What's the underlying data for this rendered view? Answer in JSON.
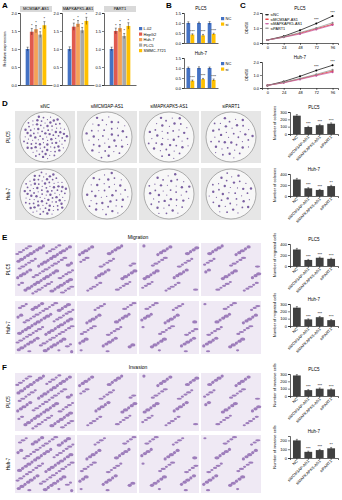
{
  "panel_labels": [
    "A",
    "B",
    "C",
    "D",
    "E",
    "F"
  ],
  "image_panels": [
    {
      "columns": [
        "siNC",
        "siMCM3AP-AS1",
        "siMAPKAPK5-AS1",
        "siPART1"
      ],
      "rows": [
        "PLC5",
        "Huh-7"
      ]
    },
    {
      "title": "Migration",
      "rows": [
        "PLC5",
        "Huh-7"
      ]
    },
    {
      "title": "Invasion",
      "rows": [
        "PLC5",
        "Huh-7"
      ]
    }
  ],
  "chart_data": [
    {
      "type": "bar",
      "title": "MCM3AP-AS1",
      "ylabel": "Relative expression",
      "categories": [
        null
      ],
      "ylim": [
        0,
        2
      ],
      "yticks": [
        {
          "value": 0,
          "label": "0.0"
        },
        0.5,
        {
          "value": 1,
          "label": "1.0"
        },
        1.5,
        {
          "value": 2,
          "label": "2.0"
        }
      ],
      "series": [
        {
          "color": "#4472c4",
          "values": [
            1.0
          ],
          "errors": [
            0.05
          ]
        },
        {
          "color": "#e05a4f",
          "values": [
            1.48
          ],
          "errors": [
            0.09
          ]
        },
        {
          "color": "#f4a259",
          "values": [
            1.55
          ],
          "errors": [
            0.1
          ]
        },
        {
          "color": "#a9a9a9",
          "values": [
            1.4
          ],
          "errors": [
            0.08
          ]
        },
        {
          "color": "#ffc000",
          "values": [
            1.66
          ],
          "errors": [
            0.1
          ]
        }
      ],
      "annotations": [
        {
          "series": 1,
          "index": 0,
          "text": "*"
        },
        {
          "series": 2,
          "index": 0,
          "text": "*"
        },
        {
          "series": 3,
          "index": 0,
          "text": "*"
        },
        {
          "series": 4,
          "index": 0,
          "text": "*"
        }
      ]
    },
    {
      "type": "bar",
      "title": "MAPKAPK5-AS1",
      "categories": [
        null
      ],
      "ylim": [
        0,
        2
      ],
      "yticks": [
        {
          "value": 0,
          "label": "0.0"
        },
        0.5,
        {
          "value": 1,
          "label": "1.0"
        },
        1.5,
        {
          "value": 2,
          "label": "2.0"
        }
      ],
      "series": [
        {
          "color": "#4472c4",
          "values": [
            1.0
          ],
          "errors": [
            0.06
          ]
        },
        {
          "color": "#e05a4f",
          "values": [
            1.62
          ],
          "errors": [
            0.1
          ]
        },
        {
          "color": "#f4a259",
          "values": [
            1.7
          ],
          "errors": [
            0.09
          ]
        },
        {
          "color": "#a9a9a9",
          "values": [
            1.52
          ],
          "errors": [
            0.08
          ]
        },
        {
          "color": "#ffc000",
          "values": [
            1.78
          ],
          "errors": [
            0.1
          ]
        }
      ],
      "annotations": [
        {
          "series": 1,
          "index": 0,
          "text": "*"
        },
        {
          "series": 2,
          "index": 0,
          "text": "*"
        },
        {
          "series": 3,
          "index": 0,
          "text": "*"
        },
        {
          "series": 4,
          "index": 0,
          "text": "*"
        }
      ]
    },
    {
      "type": "bar",
      "title": "PART1",
      "categories": [
        null
      ],
      "legend": "right",
      "ylim": [
        0,
        2
      ],
      "yticks": [
        {
          "value": 0,
          "label": "0.0"
        },
        0.5,
        {
          "value": 1,
          "label": "1.0"
        },
        1.5,
        {
          "value": 2,
          "label": "2.0"
        }
      ],
      "series": [
        {
          "name": "L-02",
          "color": "#4472c4",
          "values": [
            1.0
          ],
          "errors": [
            0.05
          ]
        },
        {
          "name": "HepG2",
          "color": "#e05a4f",
          "values": [
            1.5
          ],
          "errors": [
            0.08
          ]
        },
        {
          "name": "Huh-7",
          "color": "#f4a259",
          "values": [
            1.58
          ],
          "errors": [
            0.1
          ]
        },
        {
          "name": "PLC5",
          "color": "#a9a9a9",
          "values": [
            1.36
          ],
          "errors": [
            0.07
          ]
        },
        {
          "name": "SMMC-7721",
          "color": "#ffc000",
          "values": [
            1.64
          ],
          "errors": [
            0.09
          ]
        }
      ],
      "annotations": [
        {
          "series": 1,
          "index": 0,
          "text": "*"
        },
        {
          "series": 2,
          "index": 0,
          "text": "*"
        },
        {
          "series": 3,
          "index": 0,
          "text": "*"
        },
        {
          "series": 4,
          "index": 0,
          "text": "*"
        }
      ]
    },
    {
      "type": "bar",
      "title": "PLC5",
      "categories": [
        null,
        null,
        null
      ],
      "legend": "right",
      "ylim": [
        0,
        1.5
      ],
      "yticks": [
        {
          "value": 0,
          "label": "0.0"
        },
        0.5,
        {
          "value": 1,
          "label": "1.0"
        },
        1.5
      ],
      "series": [
        {
          "name": "NC",
          "color": "#4472c4",
          "values": [
            1.0,
            1.0,
            1.0
          ],
          "errors": [
            0.06,
            0.05,
            0.07
          ]
        },
        {
          "name": "si",
          "color": "#ffc000",
          "values": [
            0.42,
            0.38,
            0.45
          ],
          "errors": [
            0.04,
            0.05,
            0.04
          ]
        }
      ],
      "annotations": [
        {
          "series": 1,
          "index": 0,
          "text": "***"
        },
        {
          "series": 1,
          "index": 1,
          "text": "***"
        },
        {
          "series": 1,
          "index": 2,
          "text": "***"
        }
      ]
    },
    {
      "type": "bar",
      "title": "Huh-7",
      "categories": [
        null,
        null,
        null
      ],
      "legend": "right",
      "ylim": [
        0,
        1.5
      ],
      "yticks": [
        {
          "value": 0,
          "label": "0.0"
        },
        0.5,
        {
          "value": 1,
          "label": "1.0"
        },
        1.5
      ],
      "series": [
        {
          "name": "NC",
          "color": "#4472c4",
          "values": [
            1.0,
            1.0,
            1.0
          ],
          "errors": [
            0.05,
            0.06,
            0.05
          ]
        },
        {
          "name": "si",
          "color": "#ffc000",
          "values": [
            0.36,
            0.44,
            0.4
          ],
          "errors": [
            0.04,
            0.04,
            0.05
          ]
        }
      ],
      "annotations": [
        {
          "series": 1,
          "index": 0,
          "text": "***"
        },
        {
          "series": 1,
          "index": 1,
          "text": "***"
        },
        {
          "series": 1,
          "index": 2,
          "text": "***"
        }
      ]
    },
    {
      "type": "line",
      "title": "PLC5",
      "ylabel": "OD450",
      "legend": "upper left",
      "x": [
        0,
        24,
        48,
        72,
        96
      ],
      "xlim": [
        -8,
        104
      ],
      "xticks": [
        0,
        24,
        48,
        72,
        96
      ],
      "ylim": [
        0,
        2
      ],
      "yticks": [
        {
          "value": 0,
          "label": "0.0"
        },
        {
          "value": 1,
          "label": "1.0"
        },
        {
          "value": 2,
          "label": "2.0"
        }
      ],
      "series": [
        {
          "name": "siNC",
          "color": "#000000",
          "marker": "circle",
          "values": [
            0.2,
            0.45,
            0.85,
            1.3,
            1.8
          ]
        },
        {
          "name": "siMCM3AP-AS1",
          "color": "#e41a1c",
          "marker": "circle",
          "values": [
            0.2,
            0.4,
            0.65,
            0.95,
            1.25
          ]
        },
        {
          "name": "siMAPKAPK5-AS1",
          "color": "#c2509b",
          "marker": "circle",
          "values": [
            0.2,
            0.38,
            0.6,
            0.9,
            1.2
          ]
        },
        {
          "name": "siPART1",
          "color": "#8c8c8c",
          "marker": "circle",
          "values": [
            0.2,
            0.4,
            0.7,
            1.0,
            1.35
          ]
        }
      ],
      "annotations": [
        {
          "index": 3,
          "text": "***"
        },
        {
          "index": 4,
          "text": "***"
        }
      ]
    },
    {
      "type": "line",
      "title": "Huh-7",
      "ylabel": "OD450",
      "x": [
        0,
        24,
        48,
        72,
        96
      ],
      "xlim": [
        -8,
        104
      ],
      "xticks": [
        0,
        24,
        48,
        72,
        96
      ],
      "ylim": [
        0,
        2
      ],
      "yticks": [
        {
          "value": 0,
          "label": "0.0"
        },
        {
          "value": 1,
          "label": "1.0"
        },
        {
          "value": 2,
          "label": "2.0"
        }
      ],
      "series": [
        {
          "color": "#000000",
          "marker": "circle",
          "values": [
            0.2,
            0.5,
            0.9,
            1.35,
            1.75
          ]
        },
        {
          "color": "#e41a1c",
          "marker": "circle",
          "values": [
            0.2,
            0.42,
            0.7,
            1.0,
            1.3
          ]
        },
        {
          "color": "#c2509b",
          "marker": "circle",
          "values": [
            0.2,
            0.4,
            0.66,
            0.95,
            1.22
          ]
        },
        {
          "color": "#8c8c8c",
          "marker": "circle",
          "values": [
            0.2,
            0.44,
            0.74,
            1.05,
            1.4
          ]
        }
      ],
      "annotations": [
        {
          "index": 3,
          "text": "***"
        },
        {
          "index": 4,
          "text": "***"
        }
      ]
    },
    {
      "type": "bar",
      "title": "PLC5",
      "ylabel": "Number of colonies",
      "categories": [
        "NC",
        "siMCM3AP-AS1",
        "siMAPKAPK5-AS1",
        "siPART1"
      ],
      "ylim": [
        0,
        300
      ],
      "yticks": [
        0,
        100,
        200,
        300
      ],
      "series": [
        {
          "color": "#404040",
          "values": [
            250,
            95,
            120,
            140
          ],
          "errors": [
            15,
            10,
            12,
            12
          ]
        }
      ],
      "annotations": [
        {
          "series": 0,
          "index": 1,
          "text": "***"
        },
        {
          "series": 0,
          "index": 2,
          "text": "***"
        },
        {
          "series": 0,
          "index": 3,
          "text": "***"
        }
      ]
    },
    {
      "type": "bar",
      "title": "Huh-7",
      "ylabel": "Number of colonies",
      "categories": [
        "NC",
        "siMCM3AP-AS1",
        "siMAPKAPK5-AS1",
        "siPART1"
      ],
      "ylim": [
        0,
        400
      ],
      "yticks": [
        0,
        200,
        400
      ],
      "series": [
        {
          "color": "#404040",
          "values": [
            300,
            140,
            110,
            180
          ],
          "errors": [
            20,
            12,
            10,
            15
          ]
        }
      ],
      "annotations": [
        {
          "series": 0,
          "index": 1,
          "text": "***"
        },
        {
          "series": 0,
          "index": 2,
          "text": "***"
        },
        {
          "series": 0,
          "index": 3,
          "text": "**"
        }
      ]
    },
    {
      "type": "bar",
      "title": "PLC5",
      "ylabel": "Number of migrated cells",
      "categories": [
        "NC",
        "siMCM3AP-AS1",
        "siMAPKAPK5-AS1",
        "siPART1"
      ],
      "ylim": [
        0,
        400
      ],
      "yticks": [
        0,
        200,
        400
      ],
      "series": [
        {
          "color": "#404040",
          "values": [
            300,
            110,
            150,
            130
          ],
          "errors": [
            20,
            10,
            12,
            12
          ]
        }
      ],
      "annotations": [
        {
          "series": 0,
          "index": 1,
          "text": "***"
        },
        {
          "series": 0,
          "index": 2,
          "text": "***"
        },
        {
          "series": 0,
          "index": 3,
          "text": "***"
        }
      ]
    },
    {
      "type": "bar",
      "title": "Huh-7",
      "ylabel": "Number of migrated cells",
      "categories": [
        "NC",
        "siMCM3AP-AS1",
        "siMAPKAPK5-AS1",
        "siPART1"
      ],
      "ylim": [
        0,
        300
      ],
      "yticks": [
        0,
        100,
        200,
        300
      ],
      "series": [
        {
          "color": "#404040",
          "values": [
            250,
            90,
            120,
            80
          ],
          "errors": [
            15,
            8,
            10,
            8
          ]
        }
      ],
      "annotations": [
        {
          "series": 0,
          "index": 1,
          "text": "***"
        },
        {
          "series": 0,
          "index": 2,
          "text": "***"
        },
        {
          "series": 0,
          "index": 3,
          "text": "***"
        }
      ]
    },
    {
      "type": "bar",
      "title": "PLC5",
      "ylabel": "Number of invasive cells",
      "categories": [
        "NC",
        "siMCM3AP-AS1",
        "siMAPKAPK5-AS1",
        "siPART1"
      ],
      "ylim": [
        0,
        300
      ],
      "yticks": [
        0,
        100,
        200,
        300
      ],
      "series": [
        {
          "color": "#404040",
          "values": [
            280,
            80,
            100,
            90
          ],
          "errors": [
            12,
            8,
            10,
            8
          ]
        }
      ],
      "annotations": [
        {
          "series": 0,
          "index": 1,
          "text": "***"
        },
        {
          "series": 0,
          "index": 2,
          "text": "***"
        },
        {
          "series": 0,
          "index": 3,
          "text": "***"
        }
      ]
    },
    {
      "type": "bar",
      "title": "Huh-7",
      "ylabel": "Number of invasive cells",
      "categories": [
        "NC",
        "siMCM3AP-AS1",
        "siMAPKAPK5-AS1",
        "siPART1"
      ],
      "ylim": [
        0,
        250
      ],
      "yticks": [
        0,
        100,
        200
      ],
      "series": [
        {
          "color": "#404040",
          "values": [
            200,
            70,
            90,
            110
          ],
          "errors": [
            12,
            8,
            8,
            10
          ]
        }
      ],
      "annotations": [
        {
          "series": 0,
          "index": 1,
          "text": "***"
        },
        {
          "series": 0,
          "index": 2,
          "text": "***"
        },
        {
          "series": 0,
          "index": 3,
          "text": "**"
        }
      ]
    }
  ]
}
